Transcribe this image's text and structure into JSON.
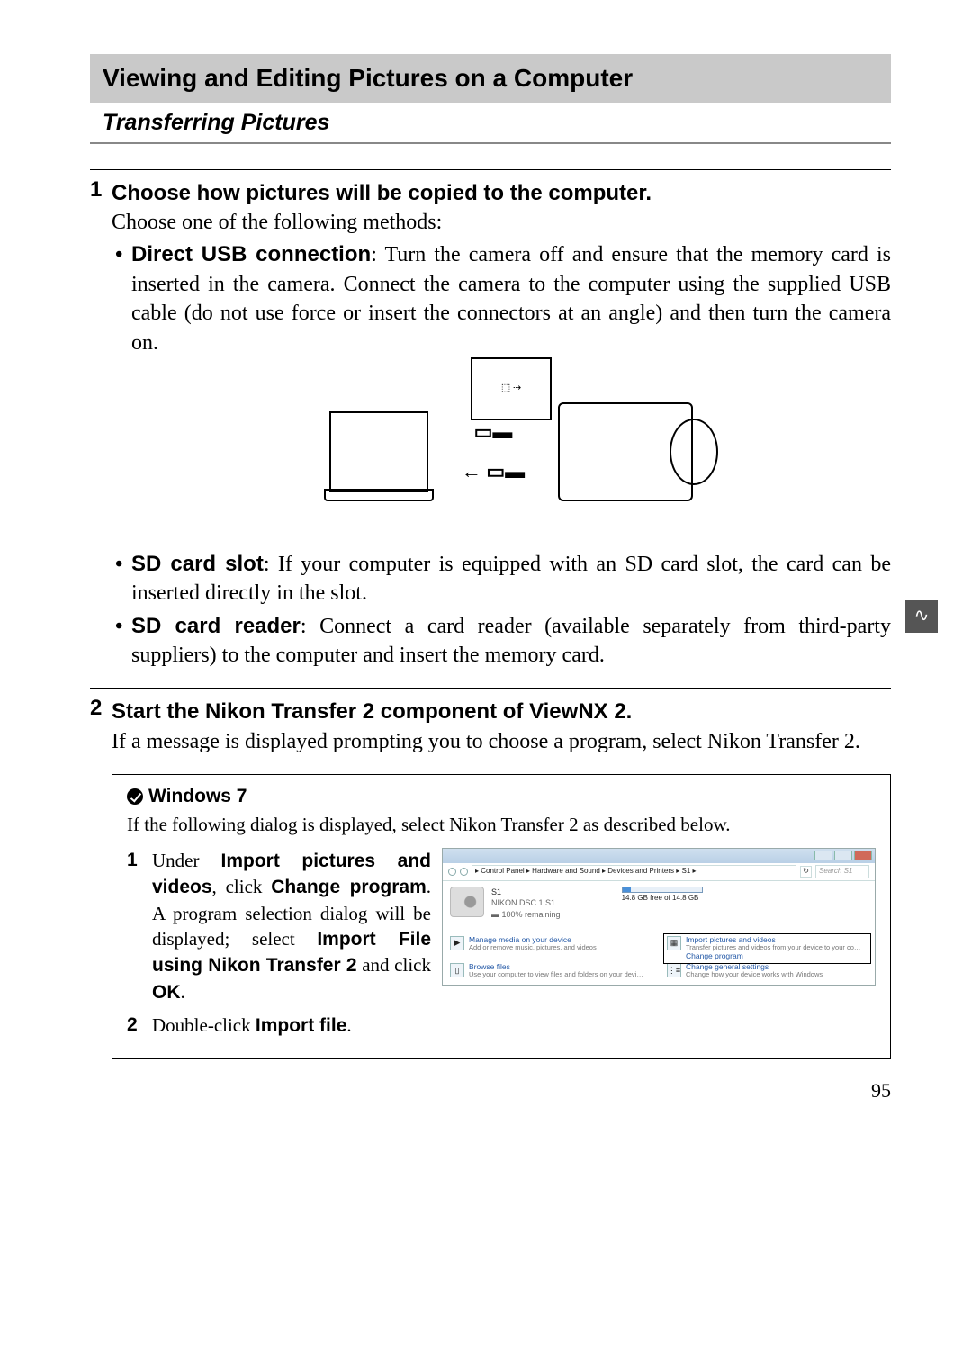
{
  "section_title": "Viewing and Editing Pictures on a Computer",
  "subsection_title": "Transferring Pictures",
  "step1": {
    "num": "1",
    "title": "Choose how pictures will be copied to the computer.",
    "intro": "Choose one of the following methods:",
    "bullets": {
      "usb_term": "Direct USB connection",
      "usb_text": ": Turn the camera off and ensure that the memory card is inserted in the camera. Connect the camera to the computer using the supplied USB cable (do not use force or insert the connectors at an angle) and then turn the camera on.",
      "slot_term": "SD card slot",
      "slot_text": ": If your computer is equipped with an SD card slot, the card can be inserted directly in the slot.",
      "reader_term": "SD card reader",
      "reader_text": ": Connect a card reader (available separately from third-party suppliers) to the computer and insert the memory card."
    }
  },
  "step2": {
    "num": "2",
    "title": "Start the Nikon Transfer 2 component of ViewNX 2.",
    "text": "If a message is displayed prompting you to choose a program, select Nikon Transfer 2."
  },
  "note": {
    "title": "Windows 7",
    "intro": "If the following dialog is displayed, select Nikon Transfer 2 as described below.",
    "item1_num": "1",
    "item1_a": "Under ",
    "item1_b": "Import pictures and videos",
    "item1_c": ", click ",
    "item1_d": "Change program",
    "item1_e": ". A program selection dialog will be displayed; select ",
    "item1_f": "Import File using Nikon Transfer 2",
    "item1_g": " and click ",
    "item1_h": "OK",
    "item1_i": ".",
    "item2_num": "2",
    "item2_a": "Double-click ",
    "item2_b": "Import file",
    "item2_c": "."
  },
  "win7": {
    "path": "▸ Control Panel ▸ Hardware and Sound ▸ Devices and Printers ▸ S1 ▸",
    "search": "Search S1",
    "refresh": "↻",
    "dev_name": "S1",
    "dev_model": "NIKON DSC 1 S1",
    "battery": "100% remaining",
    "storage": "14.8 GB free of 14.8 GB",
    "a1_title": "Manage media on your device",
    "a1_sub": "Add or remove music, pictures, and videos",
    "a2_title": "Import pictures and videos",
    "a2_sub": "Transfer pictures and videos from your device to your co…",
    "a2_link": "Change program",
    "a3_title": "Browse files",
    "a3_sub": "Use your computer to view files and folders on your devi…",
    "a4_title": "Change general settings",
    "a4_sub": "Change how your device works with Windows"
  },
  "side_tab": "∿",
  "page_number": "95"
}
